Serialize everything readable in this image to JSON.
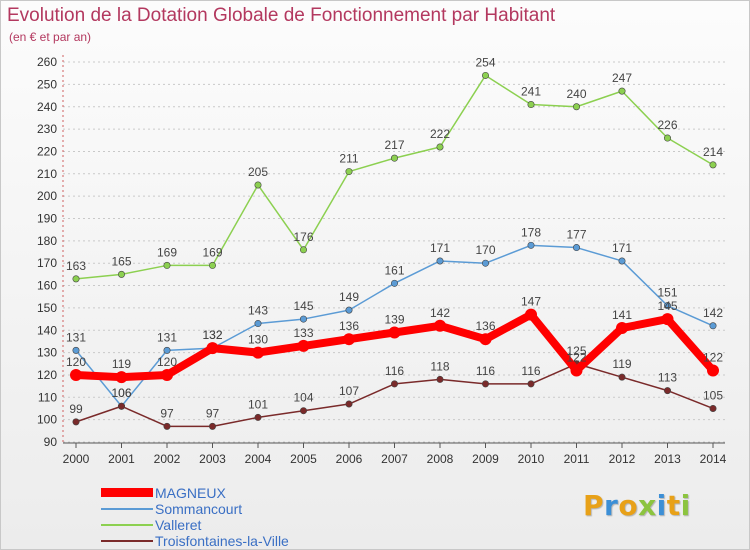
{
  "title": "Evolution de la Dotation Globale de Fonctionnement par Habitant",
  "subtitle": "(en € et par an)",
  "logo": {
    "letters": [
      {
        "char": "P",
        "color": "#e8a118"
      },
      {
        "char": "r",
        "color": "#3c8fd6"
      },
      {
        "char": "o",
        "color": "#e8a118"
      },
      {
        "char": "x",
        "color": "#8cc43f"
      },
      {
        "char": "i",
        "color": "#3c8fd6"
      },
      {
        "char": "t",
        "color": "#e8a118"
      },
      {
        "char": "i",
        "color": "#8cc43f"
      }
    ]
  },
  "chart_data": {
    "type": "line",
    "title": "Evolution de la Dotation Globale de Fonctionnement par Habitant",
    "xlabel": "",
    "ylabel": "(en € et par an)",
    "x": [
      "2000",
      "2001",
      "2002",
      "2003",
      "2004",
      "2005",
      "2006",
      "2007",
      "2008",
      "2009",
      "2010",
      "2011",
      "2012",
      "2013",
      "2014"
    ],
    "ylim": [
      90,
      260
    ],
    "yticks": [
      90,
      100,
      110,
      120,
      130,
      140,
      150,
      160,
      170,
      180,
      190,
      200,
      210,
      220,
      230,
      240,
      250,
      260
    ],
    "grid": "horizontal dashed",
    "legend_position": "bottom-left",
    "series": [
      {
        "name": "Valleret",
        "color": "#8cd050",
        "values": [
          163,
          165,
          169,
          169,
          205,
          176,
          211,
          217,
          222,
          254,
          241,
          240,
          247,
          226,
          214
        ]
      },
      {
        "name": "Sommancourt",
        "color": "#5b9bd5",
        "values": [
          131,
          106,
          131,
          132,
          143,
          145,
          149,
          161,
          171,
          170,
          178,
          177,
          171,
          151,
          142
        ]
      },
      {
        "name": "Troisfontaines-la-Ville",
        "color": "#7a2a2a",
        "values": [
          99,
          106,
          97,
          97,
          101,
          104,
          107,
          116,
          118,
          116,
          116,
          125,
          119,
          113,
          105
        ]
      },
      {
        "name": "MAGNEUX",
        "color": "#ff0000",
        "values": [
          120,
          119,
          120,
          132,
          130,
          133,
          136,
          139,
          142,
          136,
          147,
          122,
          141,
          145,
          122
        ]
      }
    ],
    "legend_order": [
      "MAGNEUX",
      "Sommancourt",
      "Valleret",
      "Troisfontaines-la-Ville"
    ]
  }
}
